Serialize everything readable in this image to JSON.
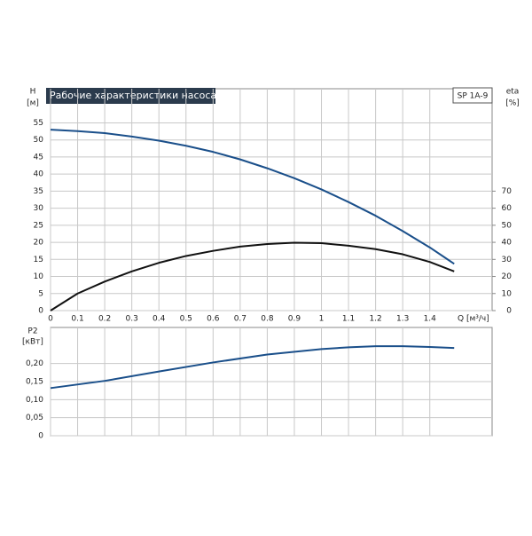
{
  "chart_data": [
    {
      "type": "line",
      "title": "Рабочие характеристики насоса",
      "tag": "SP 1A-9",
      "y_label": "H",
      "y_unit": "[м]",
      "y2_label": "eta",
      "y2_unit": "[%]",
      "x_label": "Q [м³/ч]",
      "x": [
        0,
        0.1,
        0.2,
        0.3,
        0.4,
        0.5,
        0.6,
        0.7,
        0.8,
        0.9,
        1.0,
        1.1,
        1.2,
        1.3,
        1.4,
        1.49
      ],
      "series": [
        {
          "name": "H",
          "color": "#1a4f8a",
          "values": [
            53,
            52.6,
            52,
            51,
            49.8,
            48.3,
            46.5,
            44.3,
            41.7,
            38.8,
            35.5,
            31.8,
            27.8,
            23.3,
            18.5,
            13.7
          ]
        },
        {
          "name": "eta",
          "color": "#111111",
          "axis": "y2",
          "values": [
            0,
            10,
            17,
            23,
            28,
            32,
            35,
            37.5,
            39,
            39.8,
            39.5,
            38,
            36,
            33,
            28.5,
            23
          ]
        }
      ],
      "xlim": [
        0,
        1.63
      ],
      "xticks": [
        0,
        0.1,
        0.2,
        0.3,
        0.4,
        0.5,
        0.6,
        0.7,
        0.8,
        0.9,
        1.0,
        1.1,
        1.2,
        1.3,
        1.4
      ],
      "ylim": [
        0,
        65
      ],
      "yticks": [
        0,
        5,
        10,
        15,
        20,
        25,
        30,
        35,
        40,
        45,
        50,
        55
      ],
      "y2lim": [
        0,
        130
      ],
      "y2ticks": [
        0,
        10,
        20,
        30,
        40,
        50,
        60,
        70
      ],
      "grid": true
    },
    {
      "type": "line",
      "y_label": "P2",
      "y_unit": "[кВт]",
      "x": [
        0,
        0.2,
        0.4,
        0.6,
        0.8,
        1.0,
        1.1,
        1.2,
        1.3,
        1.4,
        1.49
      ],
      "series": [
        {
          "name": "P2",
          "color": "#1a4f8a",
          "values": [
            0.132,
            0.152,
            0.178,
            0.203,
            0.225,
            0.24,
            0.245,
            0.248,
            0.248,
            0.246,
            0.243
          ]
        }
      ],
      "xlim": [
        0,
        1.63
      ],
      "ylim": [
        0,
        0.3
      ],
      "yticks": [
        0,
        {
          "value": 0.05,
          "label": "0,05"
        },
        {
          "value": 0.1,
          "label": "0,10"
        },
        {
          "value": 0.15,
          "label": "0,15"
        },
        {
          "value": 0.2,
          "label": "0,20"
        }
      ],
      "grid": true
    }
  ]
}
